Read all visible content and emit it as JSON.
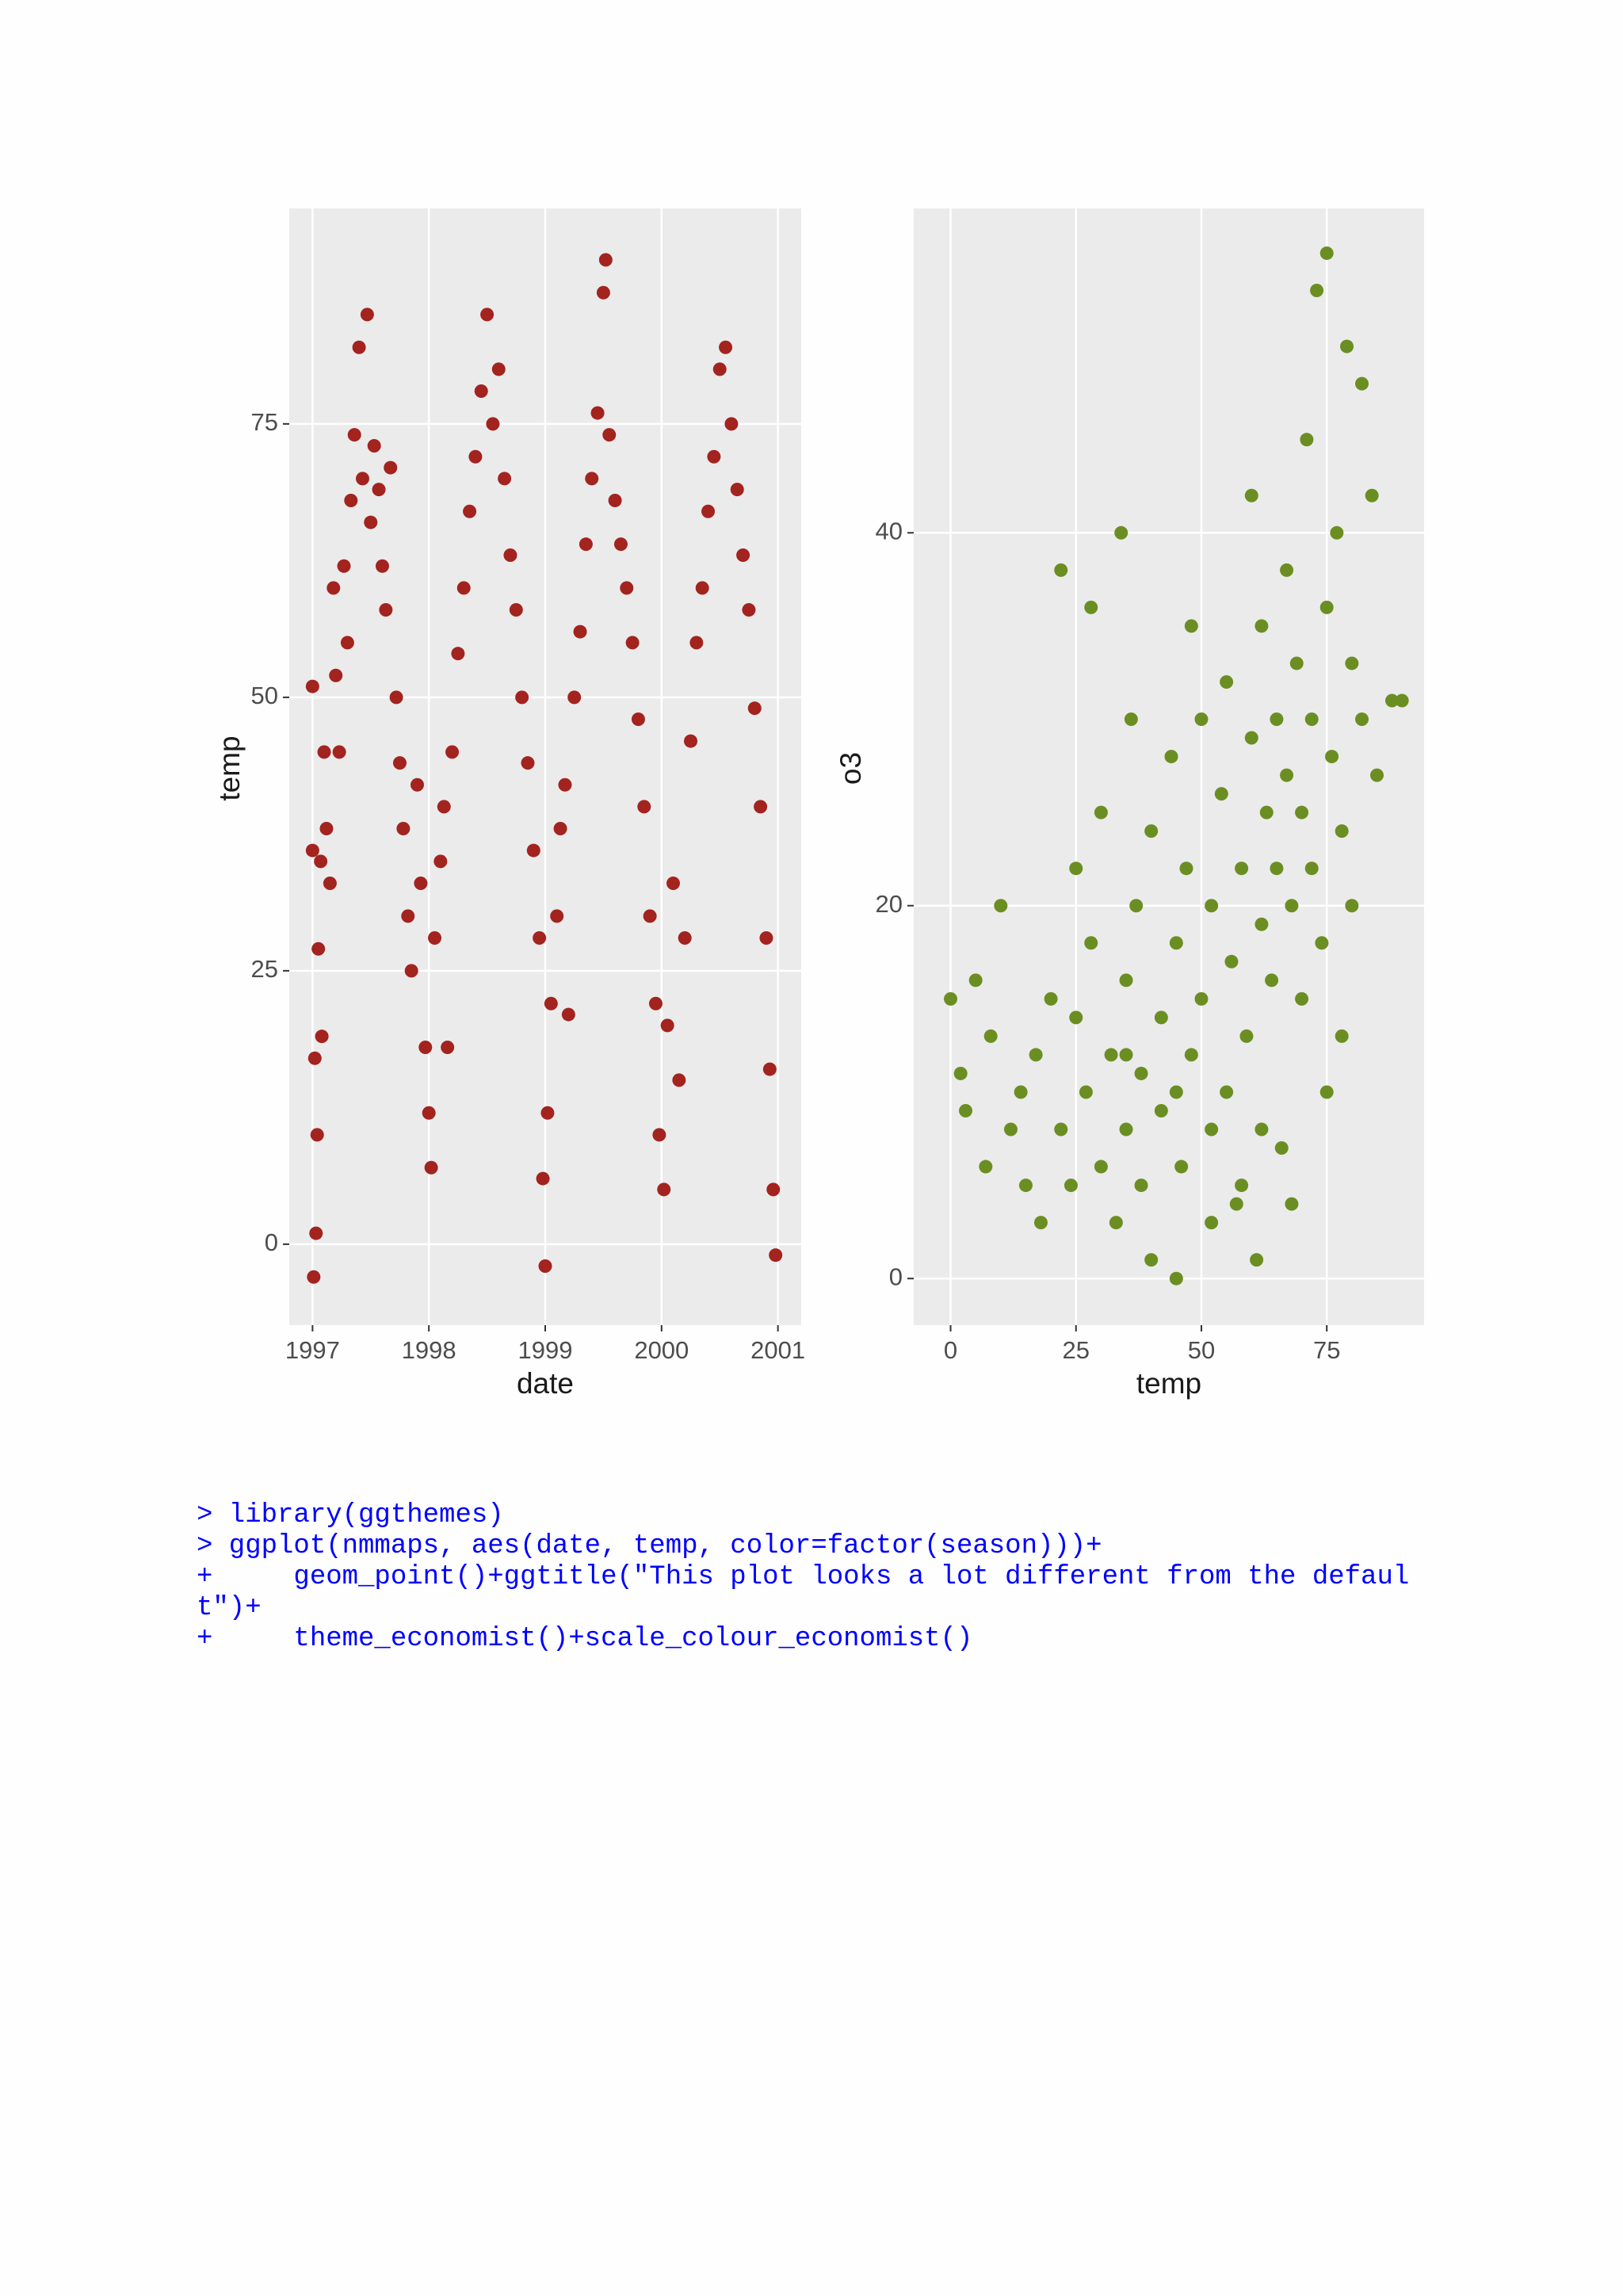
{
  "chart_data": [
    {
      "type": "scatter",
      "x_label": "date",
      "y_label": "temp",
      "color": "#a3231f",
      "grid": true,
      "xlim": [
        1996.8,
        2001.2
      ],
      "xticks": [
        1997,
        1998,
        1999,
        2000,
        2001
      ],
      "ylim": [
        -7.4,
        94.7
      ],
      "yticks": [
        0,
        25,
        50,
        75
      ],
      "x": [
        1997.0,
        1997.0,
        1997.01,
        1997.02,
        1997.03,
        1997.04,
        1997.05,
        1997.07,
        1997.08,
        1997.1,
        1997.12,
        1997.15,
        1997.18,
        1997.2,
        1997.23,
        1997.27,
        1997.3,
        1997.33,
        1997.36,
        1997.4,
        1997.43,
        1997.47,
        1997.5,
        1997.53,
        1997.57,
        1997.6,
        1997.63,
        1997.67,
        1997.72,
        1997.75,
        1997.78,
        1997.82,
        1997.85,
        1997.9,
        1997.93,
        1997.97,
        1998.0,
        1998.02,
        1998.05,
        1998.1,
        1998.13,
        1998.16,
        1998.2,
        1998.25,
        1998.3,
        1998.35,
        1998.4,
        1998.45,
        1998.5,
        1998.55,
        1998.6,
        1998.65,
        1998.7,
        1998.75,
        1998.8,
        1998.85,
        1998.9,
        1998.95,
        1998.98,
        1999.0,
        1999.02,
        1999.05,
        1999.1,
        1999.13,
        1999.17,
        1999.2,
        1999.25,
        1999.3,
        1999.35,
        1999.4,
        1999.45,
        1999.5,
        1999.52,
        1999.55,
        1999.6,
        1999.65,
        1999.7,
        1999.75,
        1999.8,
        1999.85,
        1999.9,
        1999.95,
        1999.98,
        2000.02,
        2000.05,
        2000.1,
        2000.15,
        2000.2,
        2000.25,
        2000.3,
        2000.35,
        2000.4,
        2000.45,
        2000.5,
        2000.55,
        2000.6,
        2000.65,
        2000.7,
        2000.75,
        2000.8,
        2000.85,
        2000.9,
        2000.93,
        2000.96,
        2000.98
      ],
      "values": [
        51,
        36,
        -3,
        17,
        1,
        10,
        27,
        35,
        19,
        45,
        38,
        33,
        60,
        52,
        45,
        62,
        55,
        68,
        74,
        82,
        70,
        85,
        66,
        73,
        69,
        62,
        58,
        71,
        50,
        44,
        38,
        30,
        25,
        42,
        33,
        18,
        12,
        7,
        28,
        35,
        40,
        18,
        45,
        54,
        60,
        67,
        72,
        78,
        85,
        75,
        80,
        70,
        63,
        58,
        50,
        44,
        36,
        28,
        6,
        -2,
        12,
        22,
        30,
        38,
        42,
        21,
        50,
        56,
        64,
        70,
        76,
        87,
        90,
        74,
        68,
        64,
        60,
        55,
        48,
        40,
        30,
        22,
        10,
        5,
        20,
        33,
        15,
        28,
        46,
        55,
        60,
        67,
        72,
        80,
        82,
        75,
        69,
        63,
        58,
        49,
        40,
        28,
        16,
        5,
        -1
      ]
    },
    {
      "type": "scatter",
      "x_label": "temp",
      "y_label": "o3",
      "color": "#6b8e23",
      "grid": true,
      "xlim": [
        -7.35,
        94.4
      ],
      "xticks": [
        0,
        25,
        50,
        75
      ],
      "ylim": [
        -2.5,
        57.4
      ],
      "yticks": [
        0,
        20,
        40
      ],
      "x": [
        0,
        2,
        3,
        5,
        7,
        8,
        10,
        12,
        14,
        15,
        17,
        18,
        20,
        22,
        22,
        24,
        25,
        25,
        27,
        28,
        28,
        30,
        30,
        32,
        33,
        34,
        35,
        35,
        36,
        37,
        38,
        38,
        40,
        40,
        42,
        42,
        44,
        45,
        45,
        46,
        47,
        48,
        48,
        50,
        50,
        52,
        52,
        54,
        55,
        55,
        56,
        57,
        58,
        59,
        60,
        60,
        61,
        62,
        62,
        63,
        64,
        65,
        65,
        66,
        67,
        67,
        68,
        69,
        70,
        70,
        71,
        72,
        72,
        73,
        74,
        75,
        75,
        75,
        76,
        77,
        78,
        78,
        79,
        80,
        80,
        82,
        82,
        84,
        85,
        88,
        90,
        58,
        45,
        35,
        52,
        62,
        68
      ],
      "values": [
        15,
        11,
        9,
        16,
        6,
        13,
        20,
        8,
        10,
        5,
        12,
        3,
        15,
        38,
        8,
        5,
        22,
        14,
        10,
        36,
        18,
        6,
        25,
        12,
        3,
        40,
        16,
        8,
        30,
        20,
        5,
        11,
        1,
        24,
        14,
        9,
        28,
        18,
        0,
        6,
        22,
        12,
        35,
        30,
        15,
        8,
        20,
        26,
        10,
        32,
        17,
        4,
        22,
        13,
        29,
        42,
        1,
        19,
        35,
        25,
        16,
        30,
        22,
        7,
        38,
        27,
        20,
        33,
        25,
        15,
        45,
        30,
        22,
        53,
        18,
        36,
        10,
        55,
        28,
        40,
        24,
        13,
        50,
        33,
        20,
        48,
        30,
        42,
        27,
        31,
        31,
        5,
        10,
        12,
        3,
        8,
        4
      ]
    }
  ],
  "code_lines": [
    "> library(ggthemes)",
    "> ggplot(nmmaps, aes(date, temp, color=factor(season)))+",
    "+     geom_point()+ggtitle(\"This plot looks a lot different from the defaul",
    "t\")+",
    "+     theme_economist()+scale_colour_economist()"
  ]
}
